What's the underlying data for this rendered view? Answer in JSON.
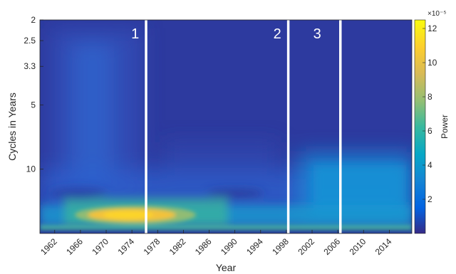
{
  "chart_data": {
    "type": "heatmap",
    "title": "",
    "xlabel": "Year",
    "ylabel": "Cycles in Years",
    "x_ticks": [
      "1962",
      "1966",
      "1970",
      "1974",
      "1978",
      "1982",
      "1986",
      "1990",
      "1994",
      "1998",
      "2002",
      "2006",
      "2010",
      "2014"
    ],
    "x_tick_values": [
      1962,
      1966,
      1970,
      1974,
      1978,
      1982,
      1986,
      1990,
      1994,
      1998,
      2002,
      2006,
      2010,
      2014
    ],
    "xlim": [
      1959.7,
      2017.5
    ],
    "y_ticks": [
      "2",
      "2.5",
      "3.3",
      "5",
      "10"
    ],
    "y_tick_values": [
      2,
      2.5,
      3.3,
      5,
      10
    ],
    "y_scale": "log",
    "ylim": [
      2,
      20
    ],
    "colorbar": {
      "label": "Power",
      "exponent": "×10⁻⁵",
      "ticks": [
        "2",
        "4",
        "6",
        "8",
        "10",
        "12"
      ],
      "tick_values": [
        2,
        4,
        6,
        8,
        10,
        12
      ],
      "range": [
        0,
        12.5
      ],
      "colormap": "parula"
    },
    "segment_dividers": [
      1976.2,
      1998.3,
      2006.4
    ],
    "segment_labels": [
      {
        "text": "1",
        "x": 1974.5
      },
      {
        "text": "2",
        "x": 1996.6
      },
      {
        "text": "3",
        "x": 2002.8
      }
    ],
    "power_hotspots": [
      {
        "x_range": [
          1963,
          1982
        ],
        "period_center": 13.5,
        "peak": 12.5
      },
      {
        "x_range": [
          1960,
          2017
        ],
        "period_center": 18.5,
        "peak": 4
      },
      {
        "x_range": [
          1999,
          2015
        ],
        "period_center": 9.5,
        "peak": 3
      },
      {
        "x_range": [
          1964,
          1980
        ],
        "period_center": 4,
        "peak": 2.5
      }
    ]
  }
}
